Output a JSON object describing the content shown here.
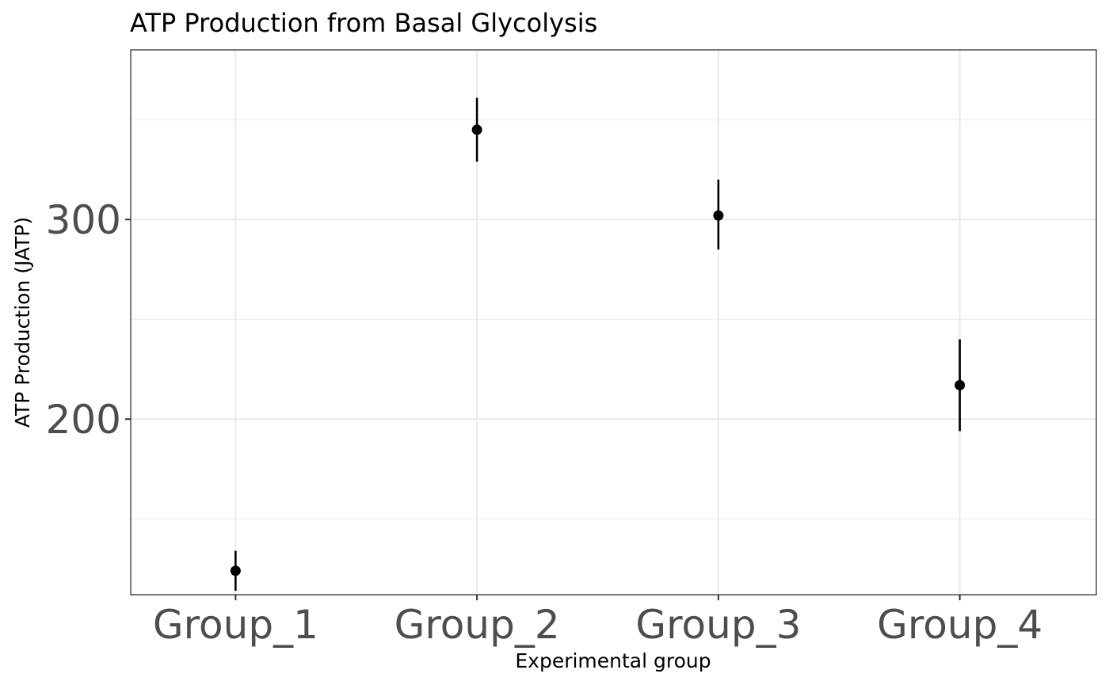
{
  "chart_data": {
    "type": "scatter",
    "title": "ATP Production from Basal Glycolysis",
    "xlabel": "Experimental group",
    "ylabel": "ATP Production (JATP)",
    "categories": [
      "Group_1",
      "Group_2",
      "Group_3",
      "Group_4"
    ],
    "values": [
      124,
      345,
      302,
      217
    ],
    "error_low": [
      114,
      329,
      285,
      194
    ],
    "error_high": [
      134,
      361,
      320,
      240
    ],
    "ylim": [
      112,
      385
    ],
    "yticks": [
      200,
      300
    ],
    "y_minor_gridlines": [
      150,
      250,
      350
    ],
    "grid": true,
    "colors": {
      "points": "#000000",
      "grid": "#ebebeb",
      "panel_border": "#333333",
      "tick_labels": "#4d4d4d"
    }
  }
}
